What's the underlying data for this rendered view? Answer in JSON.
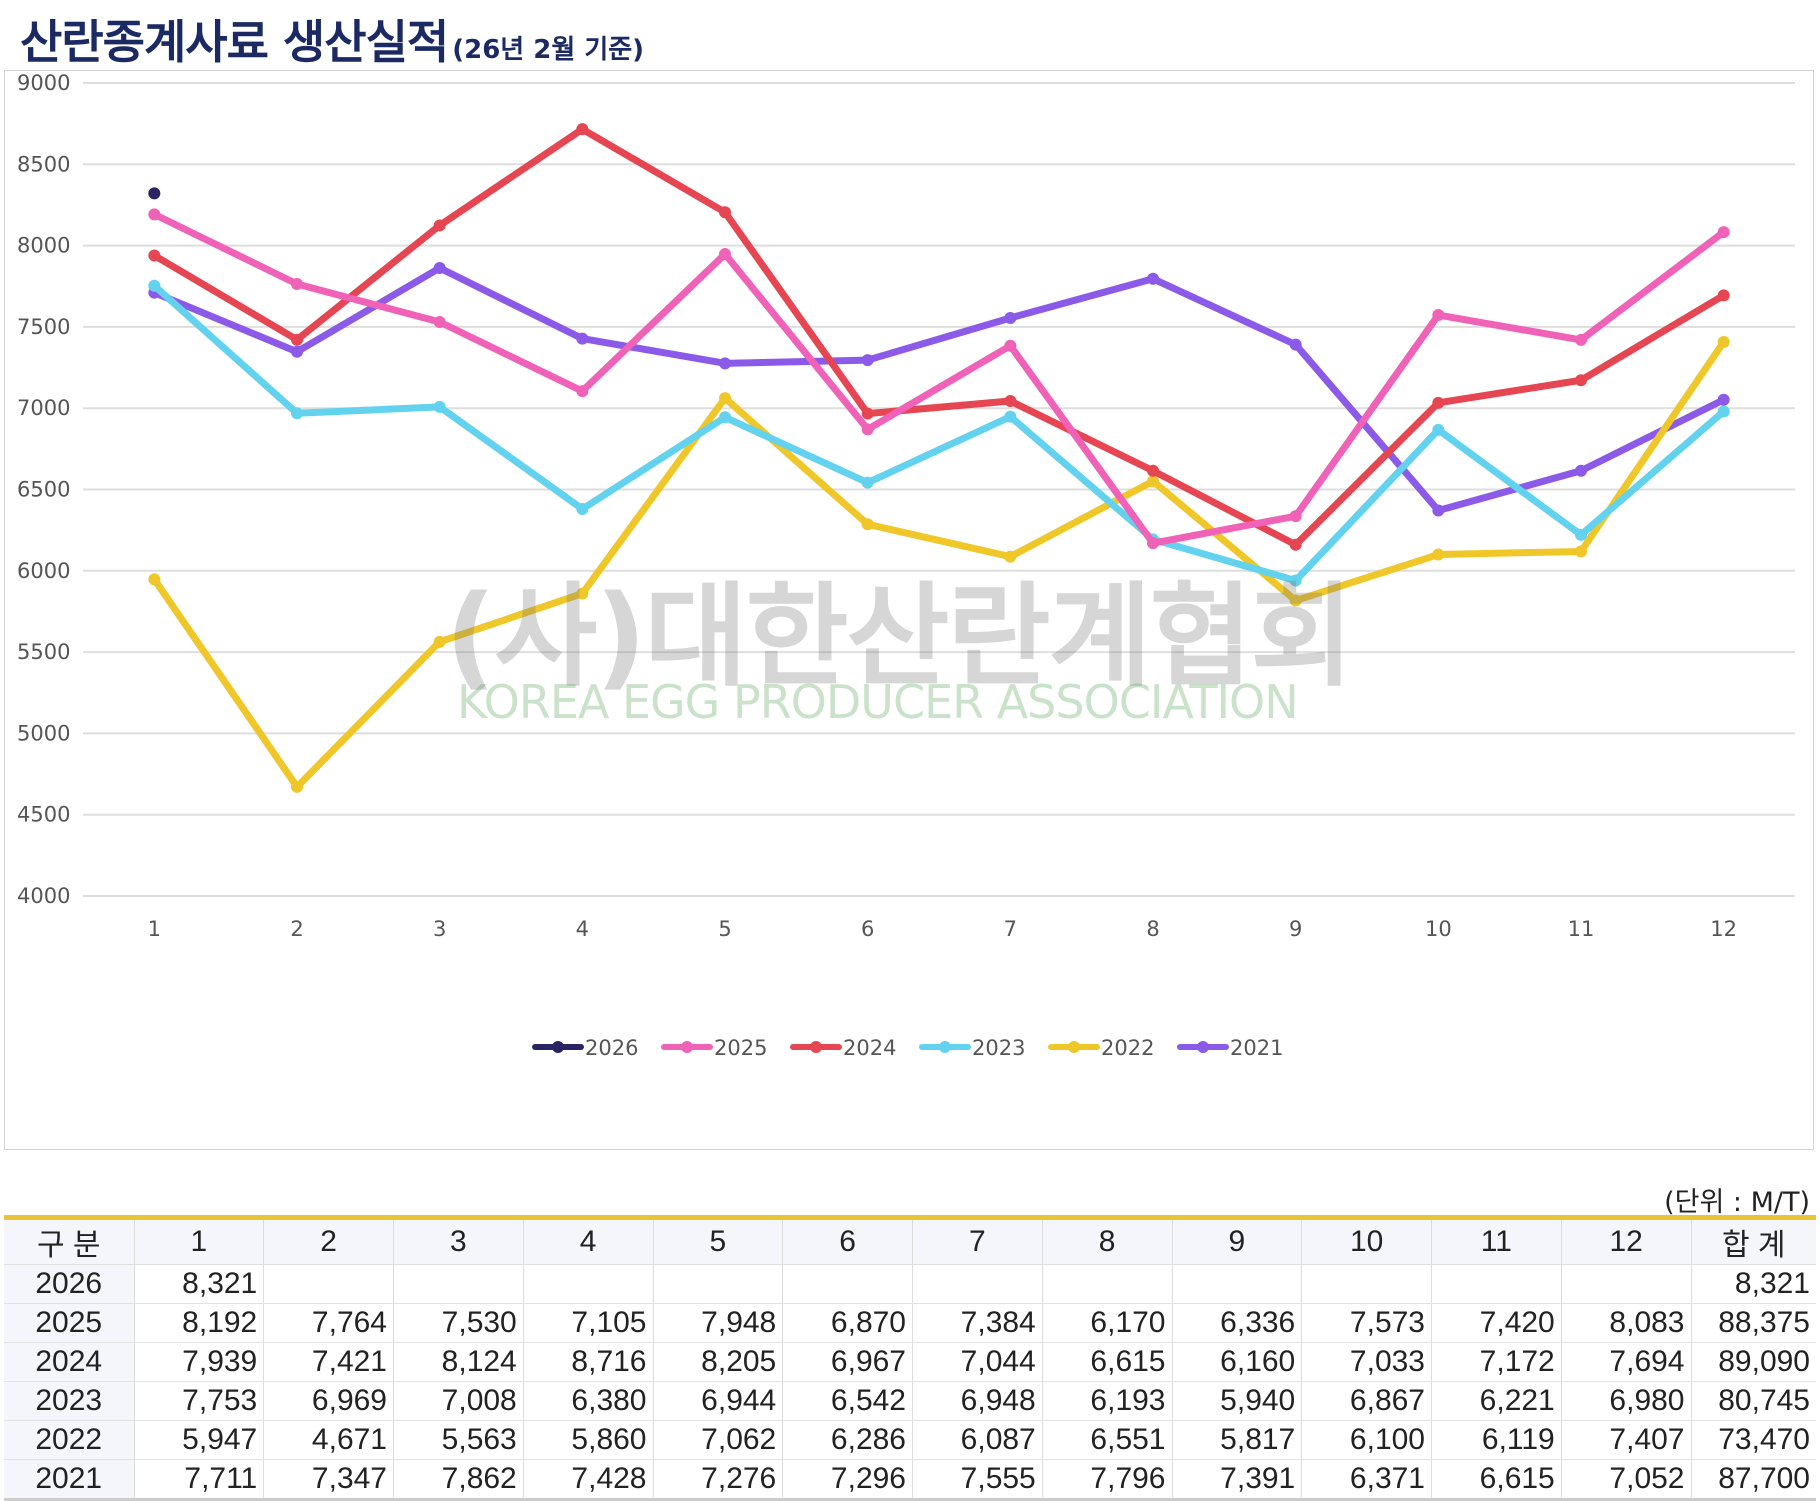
{
  "title": {
    "main": "산란종계사료 생산실적",
    "sub": "(26년 2월 기준)"
  },
  "watermark": {
    "korean": "(사)대한산란계협회",
    "english": "KOREA EGG PRODUCER ASSOCIATION"
  },
  "chart_data": {
    "type": "line",
    "categories": [
      "1",
      "2",
      "3",
      "4",
      "5",
      "6",
      "7",
      "8",
      "9",
      "10",
      "11",
      "12"
    ],
    "ylim": [
      4000,
      9000
    ],
    "yticks": [
      "9000",
      "8500",
      "8000",
      "7500",
      "7000",
      "6500",
      "6000",
      "5500",
      "5000",
      "4500",
      "4000"
    ],
    "grid": true,
    "legend_position": "bottom",
    "series": [
      {
        "name": "2026",
        "color": "#2b2463",
        "values": [
          8321,
          null,
          null,
          null,
          null,
          null,
          null,
          null,
          null,
          null,
          null,
          null
        ]
      },
      {
        "name": "2025",
        "color": "#f062b8",
        "values": [
          8192,
          7764,
          7530,
          7105,
          7948,
          6870,
          7384,
          6170,
          6336,
          7573,
          7420,
          8083
        ]
      },
      {
        "name": "2024",
        "color": "#e64552",
        "values": [
          7939,
          7421,
          8124,
          8716,
          8205,
          6967,
          7044,
          6615,
          6160,
          7033,
          7172,
          7694
        ]
      },
      {
        "name": "2023",
        "color": "#62d2ee",
        "values": [
          7753,
          6969,
          7008,
          6380,
          6944,
          6542,
          6948,
          6193,
          5940,
          6867,
          6221,
          6980
        ]
      },
      {
        "name": "2022",
        "color": "#efc729",
        "values": [
          5947,
          4671,
          5563,
          5860,
          7062,
          6286,
          6087,
          6551,
          5817,
          6100,
          6119,
          7407
        ]
      },
      {
        "name": "2021",
        "color": "#8c5ae8",
        "values": [
          7711,
          7347,
          7862,
          7428,
          7276,
          7296,
          7555,
          7796,
          7391,
          6371,
          6615,
          7052
        ]
      }
    ]
  },
  "table": {
    "unit": "(단위 : M/T)",
    "headers": [
      "구 분",
      "1",
      "2",
      "3",
      "4",
      "5",
      "6",
      "7",
      "8",
      "9",
      "10",
      "11",
      "12",
      "합 계"
    ],
    "rows": [
      [
        "2026",
        "8,321",
        "",
        "",
        "",
        "",
        "",
        "",
        "",
        "",
        "",
        "",
        "",
        "8,321"
      ],
      [
        "2025",
        "8,192",
        "7,764",
        "7,530",
        "7,105",
        "7,948",
        "6,870",
        "7,384",
        "6,170",
        "6,336",
        "7,573",
        "7,420",
        "8,083",
        "88,375"
      ],
      [
        "2024",
        "7,939",
        "7,421",
        "8,124",
        "8,716",
        "8,205",
        "6,967",
        "7,044",
        "6,615",
        "6,160",
        "7,033",
        "7,172",
        "7,694",
        "89,090"
      ],
      [
        "2023",
        "7,753",
        "6,969",
        "7,008",
        "6,380",
        "6,944",
        "6,542",
        "6,948",
        "6,193",
        "5,940",
        "6,867",
        "6,221",
        "6,980",
        "80,745"
      ],
      [
        "2022",
        "5,947",
        "4,671",
        "5,563",
        "5,860",
        "7,062",
        "6,286",
        "6,087",
        "6,551",
        "5,817",
        "6,100",
        "6,119",
        "7,407",
        "73,470"
      ],
      [
        "2021",
        "7,711",
        "7,347",
        "7,862",
        "7,428",
        "7,276",
        "7,296",
        "7,555",
        "7,796",
        "7,391",
        "6,371",
        "6,615",
        "7,052",
        "87,700"
      ]
    ]
  }
}
